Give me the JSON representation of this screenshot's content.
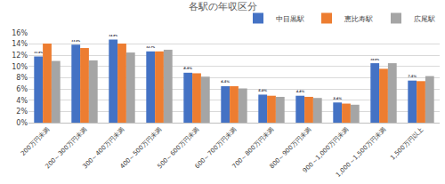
{
  "chart_data": {
    "type": "bar",
    "title": "各駅の年収区分",
    "categories": [
      "200万円未満",
      "200～300万円未満",
      "300～400万円未満",
      "400～500万円未満",
      "500～600万円未満",
      "600～700万円未満",
      "700～800万円未満",
      "800～900万円未満",
      "900～1,000万円未満",
      "1,000～1,500万円未満",
      "1,500万円以上"
    ],
    "series": [
      {
        "name": "中目黒駅",
        "color": "#4472c4",
        "values": [
          11.8,
          13.9,
          14.8,
          12.7,
          8.9,
          6.5,
          5.0,
          4.8,
          3.6,
          10.6,
          7.5
        ],
        "data_labels": true,
        "value_labels": [
          "11.8%",
          "13.9%",
          "14.8%",
          "12.7%",
          "8.9%",
          "6.5%",
          "5.0%",
          "4.8%",
          "3.6%",
          "10.6%",
          "7.5%"
        ]
      },
      {
        "name": "恵比寿駅",
        "color": "#ed7d31",
        "values": [
          14.1,
          13.3,
          14.1,
          12.7,
          8.8,
          6.5,
          4.8,
          4.6,
          3.4,
          9.6,
          7.4
        ]
      },
      {
        "name": "広尾駅",
        "color": "#a5a5a5",
        "values": [
          11.0,
          11.1,
          12.5,
          13.0,
          8.2,
          6.1,
          4.6,
          4.4,
          3.2,
          10.6,
          8.3
        ]
      }
    ],
    "ylim": [
      0,
      16
    ],
    "yticks": [
      {
        "value": 0,
        "label": "0%"
      },
      {
        "value": 2,
        "label": "2%"
      },
      {
        "value": 4,
        "label": "4%"
      },
      {
        "value": 6,
        "label": "6%"
      },
      {
        "value": 8,
        "label": "8%"
      },
      {
        "value": 10,
        "label": "10%"
      },
      {
        "value": 12,
        "label": "12%"
      },
      {
        "value": 14,
        "label": "14%"
      },
      {
        "value": 16,
        "label": "16%"
      }
    ],
    "grid": true,
    "legend": "top right"
  }
}
